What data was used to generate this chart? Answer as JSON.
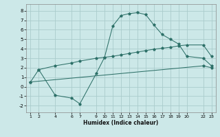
{
  "xlabel": "Humidex (Indice chaleur)",
  "bg_color": "#cce8e8",
  "grid_color": "#aacccc",
  "line_color": "#2d7068",
  "xlim": [
    0.5,
    23.5
  ],
  "ylim": [
    -2.7,
    8.7
  ],
  "xticks": [
    1,
    2,
    4,
    6,
    7,
    9,
    10,
    11,
    12,
    13,
    14,
    15,
    16,
    17,
    18,
    19,
    20,
    22,
    23
  ],
  "yticks": [
    -2,
    -1,
    0,
    1,
    2,
    3,
    4,
    5,
    6,
    7,
    8
  ],
  "line1_x": [
    2,
    4,
    6,
    7,
    9,
    10,
    11,
    12,
    13,
    14,
    15,
    16,
    17,
    18,
    19,
    20,
    22,
    23
  ],
  "line1_y": [
    1.8,
    -0.9,
    -1.2,
    -1.8,
    1.4,
    3.1,
    6.4,
    7.5,
    7.7,
    7.8,
    7.6,
    6.5,
    5.5,
    5.0,
    4.5,
    3.2,
    3.0,
    2.2
  ],
  "line2_x": [
    1,
    2,
    4,
    6,
    7,
    9,
    10,
    11,
    12,
    13,
    14,
    15,
    16,
    17,
    18,
    19,
    20,
    22,
    23
  ],
  "line2_y": [
    0.5,
    1.8,
    2.2,
    2.5,
    2.7,
    3.0,
    3.1,
    3.2,
    3.35,
    3.5,
    3.65,
    3.8,
    3.95,
    4.05,
    4.15,
    4.3,
    4.4,
    4.4,
    3.2
  ],
  "line3_x": [
    1,
    22,
    23
  ],
  "line3_y": [
    0.5,
    2.2,
    2.0
  ]
}
